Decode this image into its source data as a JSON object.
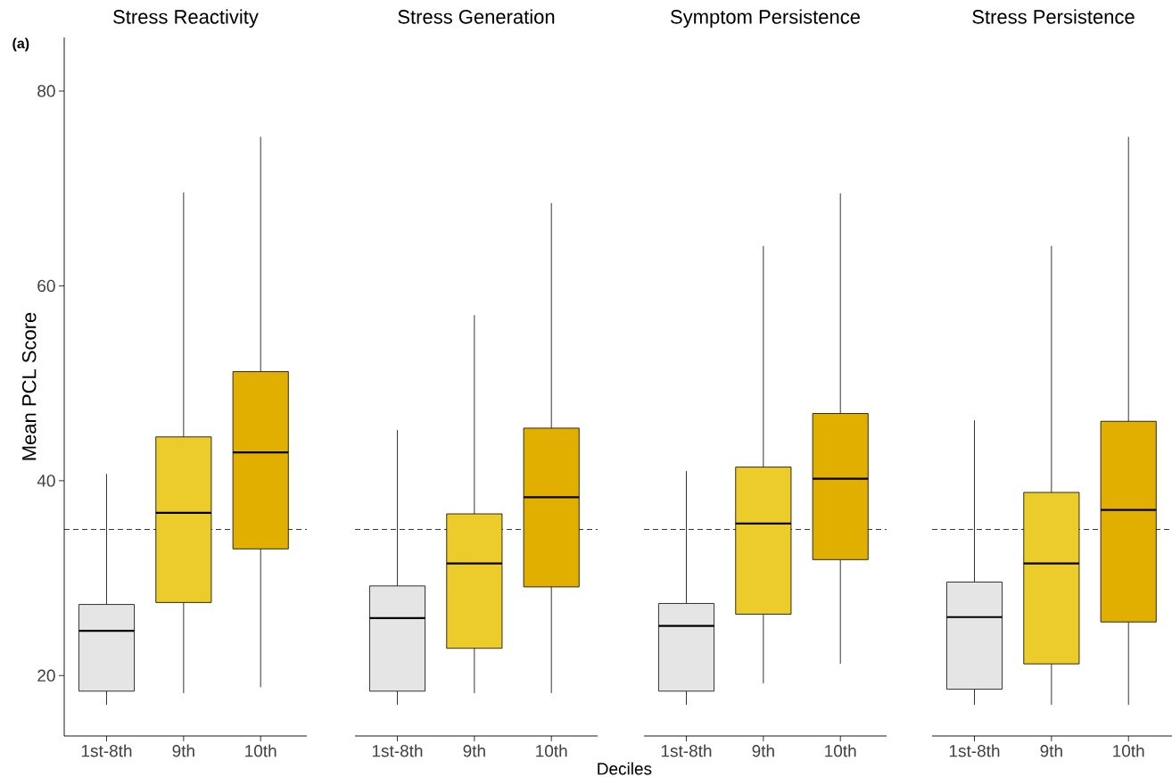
{
  "chart_data": [
    {
      "type": "box",
      "title": "Stress Reactivity",
      "ylabel": "Mean PCL Score",
      "annotations": [
        "(a)"
      ],
      "categories": [
        "1st-8th",
        "9th",
        "10th"
      ],
      "colors": [
        "#e5e5e5",
        "#ebcc2a",
        "#e1af00"
      ],
      "boxes": [
        {
          "low": 17.0,
          "q1": 18.4,
          "median": 24.6,
          "q3": 27.3,
          "high": 40.7
        },
        {
          "low": 18.2,
          "q1": 27.5,
          "median": 36.7,
          "q3": 44.5,
          "high": 69.6
        },
        {
          "low": 18.8,
          "q1": 33.0,
          "median": 42.9,
          "q3": 51.2,
          "high": 75.3
        }
      ],
      "ylim": [
        13.8,
        85.5
      ],
      "yticks": [
        20,
        40,
        60,
        80
      ],
      "ref_lines": [
        {
          "axis": "y",
          "value": 35,
          "line_style": "dashed"
        }
      ]
    },
    {
      "type": "box",
      "title": "Stress Generation",
      "xlabel": "Deciles",
      "categories": [
        "1st-8th",
        "9th",
        "10th"
      ],
      "colors": [
        "#e5e5e5",
        "#ebcc2a",
        "#e1af00"
      ],
      "boxes": [
        {
          "low": 17.0,
          "q1": 18.4,
          "median": 25.9,
          "q3": 29.2,
          "high": 45.2
        },
        {
          "low": 18.2,
          "q1": 22.8,
          "median": 31.5,
          "q3": 36.6,
          "high": 57.0
        },
        {
          "low": 18.2,
          "q1": 29.1,
          "median": 38.3,
          "q3": 45.4,
          "high": 68.5
        }
      ],
      "yticks": [
        20,
        40,
        60,
        80
      ],
      "tick_labels": "x",
      "ref_lines": [
        {
          "axis": "y",
          "value": 35,
          "line_style": "dashed"
        }
      ]
    },
    {
      "type": "box",
      "title": "Symptom Persistence",
      "categories": [
        "1st-8th",
        "9th",
        "10th"
      ],
      "colors": [
        "#e5e5e5",
        "#ebcc2a",
        "#e1af00"
      ],
      "boxes": [
        {
          "low": 17.0,
          "q1": 18.4,
          "median": 25.1,
          "q3": 27.4,
          "high": 41.0
        },
        {
          "low": 19.2,
          "q1": 26.3,
          "median": 35.6,
          "q3": 41.4,
          "high": 64.1
        },
        {
          "low": 21.2,
          "q1": 31.9,
          "median": 40.2,
          "q3": 46.9,
          "high": 69.5
        }
      ],
      "yticks": [
        20,
        40,
        60,
        80
      ],
      "tick_labels": "x",
      "ref_lines": [
        {
          "axis": "y",
          "value": 35,
          "line_style": "dashed"
        }
      ]
    },
    {
      "type": "box",
      "title": "Stress Persistence",
      "categories": [
        "1st-8th",
        "9th",
        "10th"
      ],
      "colors": [
        "#e5e5e5",
        "#ebcc2a",
        "#e1af00"
      ],
      "boxes": [
        {
          "low": 17.0,
          "q1": 18.6,
          "median": 26.0,
          "q3": 29.6,
          "high": 46.2
        },
        {
          "low": 17.0,
          "q1": 21.2,
          "median": 31.5,
          "q3": 38.8,
          "high": 64.1
        },
        {
          "low": 17.0,
          "q1": 25.5,
          "median": 37.0,
          "q3": 46.1,
          "high": 75.3
        }
      ],
      "yticks": [
        20,
        40,
        60,
        80
      ],
      "tick_labels": "x",
      "ref_lines": [
        {
          "axis": "y",
          "value": 35,
          "line_style": "dashed"
        }
      ]
    }
  ]
}
